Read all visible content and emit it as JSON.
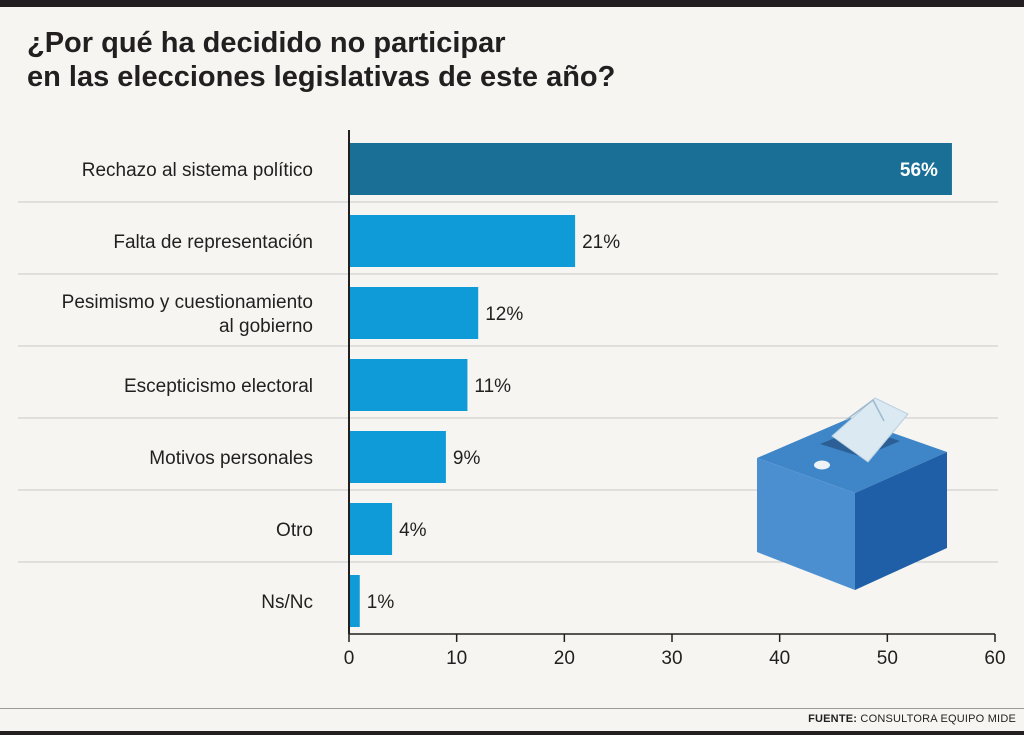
{
  "title": {
    "line1": "¿Por qué ha decidido no participar",
    "line2": "en las elecciones legislativas de este año?"
  },
  "chart_data": {
    "type": "bar",
    "orientation": "horizontal",
    "title": "¿Por qué ha decidido no participar en las elecciones legislativas de este año?",
    "categories": [
      [
        "Rechazo al sistema político"
      ],
      [
        "Falta de representación"
      ],
      [
        "Pesimismo y cuestionamiento",
        "al gobierno"
      ],
      [
        "Escepticismo electoral"
      ],
      [
        "Motivos personales"
      ],
      [
        "Otro"
      ],
      [
        "Ns/Nc"
      ]
    ],
    "values": [
      56,
      21,
      12,
      11,
      9,
      4,
      1
    ],
    "labels": [
      "56%",
      "21%",
      "12%",
      "11%",
      "9%",
      "4%",
      "1%"
    ],
    "xlim": [
      0,
      60
    ],
    "xticks": [
      "0",
      "10",
      "20",
      "30",
      "40",
      "50",
      "60"
    ],
    "highlight_color": "#1a6f96",
    "bar_color": "#0e9bd8"
  },
  "footer": {
    "label": "FUENTE:",
    "source": "CONSULTORA EQUIPO MIDE"
  }
}
